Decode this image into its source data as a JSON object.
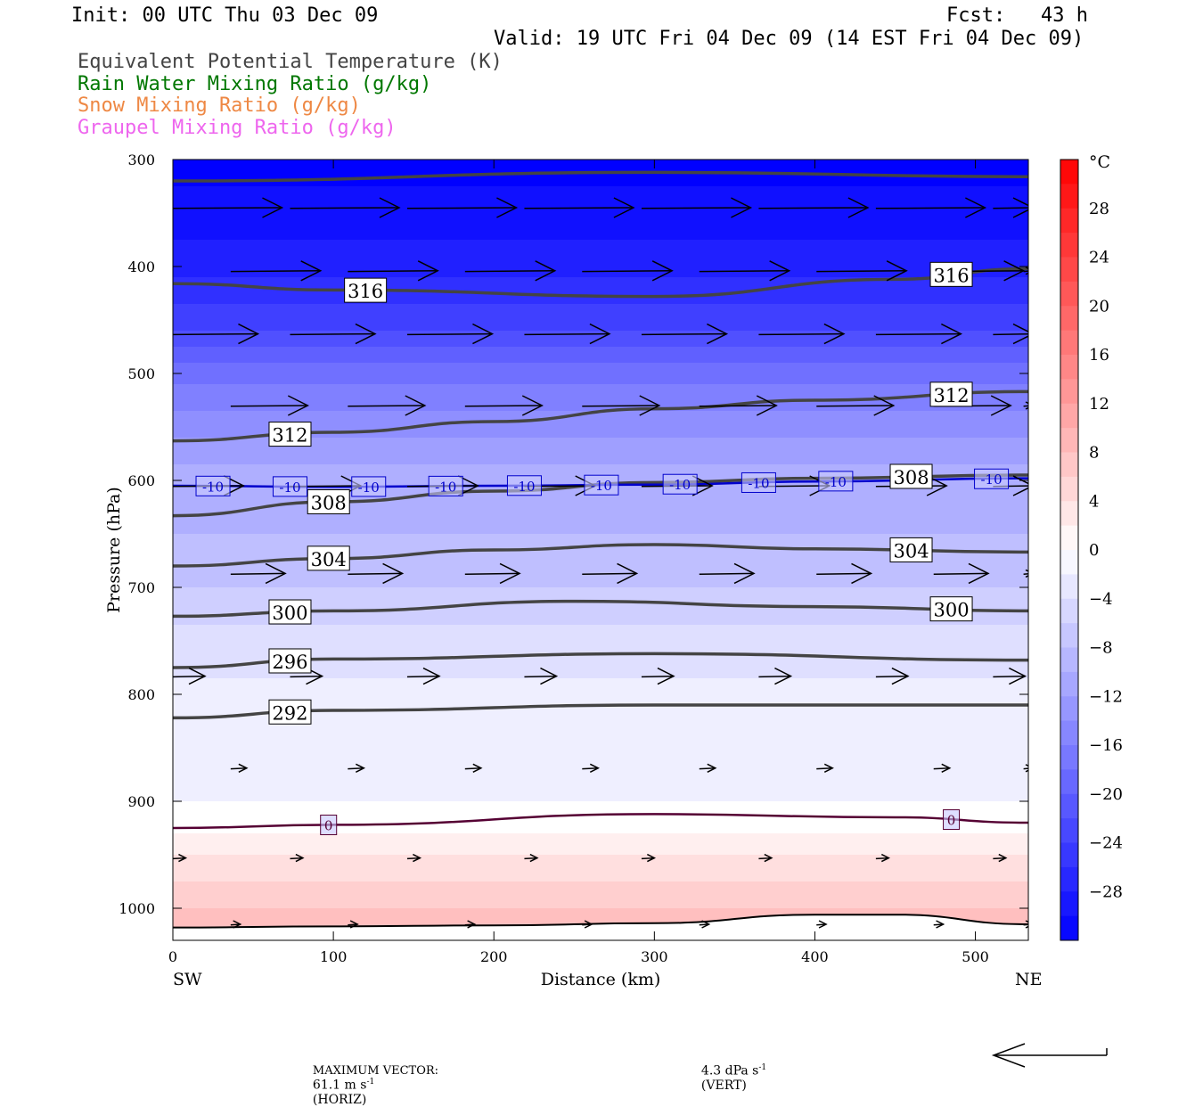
{
  "header": {
    "init": "Init: 00 UTC Thu 03 Dec 09",
    "fcst": "Fcst:   43 h",
    "valid": "Valid: 19 UTC Fri 04 Dec 09 (14 EST Fri 04 Dec 09)"
  },
  "legend": [
    {
      "label": "Equivalent Potential Temperature (K)",
      "color": "#444444"
    },
    {
      "label": "Rain Water Mixing Ratio (g/kg)",
      "color": "#007700"
    },
    {
      "label": "Snow Mixing Ratio (g/kg)",
      "color": "#ee8844"
    },
    {
      "label": "Graupel Mixing Ratio (g/kg)",
      "color": "#ee66ee"
    }
  ],
  "footer": {
    "max_vector_label": "MAXIMUM VECTOR:",
    "horiz_value": "61.1 m s",
    "horiz_exp": "-1",
    "horiz_unit": "(HORIZ)",
    "vert_value": "4.3 dPa s",
    "vert_exp": "-1",
    "vert_unit": "(VERT)"
  },
  "chart_data": {
    "type": "contour",
    "xlabel": "Distance (km)",
    "ylabel": "Pressure (hPa)",
    "x_ticks": [
      0,
      100,
      200,
      300,
      400,
      500
    ],
    "y_ticks": [
      300,
      400,
      500,
      600,
      700,
      800,
      900,
      1000
    ],
    "xlim": [
      0,
      533
    ],
    "ylim": [
      1030,
      300
    ],
    "left_end_label": "SW",
    "right_end_label": "NE",
    "colorbar": {
      "unit": "°C",
      "labels": [
        28,
        24,
        20,
        16,
        12,
        8,
        4,
        0,
        -4,
        -8,
        -12,
        -16,
        -20,
        -24,
        -28
      ],
      "min": -32,
      "max": 32,
      "step": 2
    },
    "temperature_fill": [
      {
        "p": 300,
        "t": -32
      },
      {
        "p": 400,
        "t": -28
      },
      {
        "p": 450,
        "t": -24
      },
      {
        "p": 500,
        "t": -18
      },
      {
        "p": 550,
        "t": -14
      },
      {
        "p": 600,
        "t": -10
      },
      {
        "p": 650,
        "t": -9
      },
      {
        "p": 700,
        "t": -7
      },
      {
        "p": 750,
        "t": -4
      },
      {
        "p": 800,
        "t": -2.5
      },
      {
        "p": 850,
        "t": -2.5
      },
      {
        "p": 900,
        "t": -1
      },
      {
        "p": 920,
        "t": 0
      },
      {
        "p": 950,
        "t": 3
      },
      {
        "p": 1000,
        "t": 7
      },
      {
        "p": 1030,
        "t": 9
      }
    ],
    "theta_e_contours": [
      {
        "value": 316,
        "labels": [
          "316"
        ],
        "points": [
          [
            0,
            320
          ],
          [
            300,
            312
          ],
          [
            533,
            316
          ]
        ]
      },
      {
        "value": 316,
        "labels": [
          "316",
          "316"
        ],
        "points": [
          [
            0,
            416
          ],
          [
            100,
            422
          ],
          [
            300,
            428
          ],
          [
            450,
            412
          ],
          [
            533,
            402
          ]
        ]
      },
      {
        "value": 312,
        "labels": [
          "312",
          "312"
        ],
        "points": [
          [
            0,
            563
          ],
          [
            100,
            555
          ],
          [
            200,
            545
          ],
          [
            300,
            533
          ],
          [
            400,
            525
          ],
          [
            533,
            517
          ]
        ]
      },
      {
        "value": 308,
        "labels": [
          "308",
          "308"
        ],
        "points": [
          [
            0,
            633
          ],
          [
            100,
            620
          ],
          [
            200,
            610
          ],
          [
            300,
            602
          ],
          [
            400,
            598
          ],
          [
            533,
            595
          ]
        ]
      },
      {
        "value": 304,
        "labels": [
          "304",
          "304"
        ],
        "points": [
          [
            0,
            680
          ],
          [
            100,
            673
          ],
          [
            200,
            665
          ],
          [
            300,
            660
          ],
          [
            400,
            664
          ],
          [
            533,
            667
          ]
        ]
      },
      {
        "value": 300,
        "labels": [
          "300",
          "300"
        ],
        "points": [
          [
            0,
            727
          ],
          [
            100,
            722
          ],
          [
            250,
            713
          ],
          [
            400,
            718
          ],
          [
            533,
            722
          ]
        ]
      },
      {
        "value": 296,
        "labels": [
          "296"
        ],
        "points": [
          [
            0,
            775
          ],
          [
            100,
            767
          ],
          [
            300,
            762
          ],
          [
            533,
            768
          ]
        ]
      },
      {
        "value": 292,
        "labels": [
          "292"
        ],
        "points": [
          [
            0,
            822
          ],
          [
            100,
            815
          ],
          [
            300,
            810
          ],
          [
            533,
            810
          ]
        ]
      }
    ],
    "isotherm_contours": [
      {
        "value": -10,
        "label": "-10",
        "color": "#0000cc",
        "points": [
          [
            0,
            605
          ],
          [
            100,
            606
          ],
          [
            200,
            605
          ],
          [
            300,
            604
          ],
          [
            400,
            601
          ],
          [
            533,
            598
          ]
        ]
      },
      {
        "value": 0,
        "label": "0",
        "color": "#550033",
        "points": [
          [
            0,
            925
          ],
          [
            100,
            922
          ],
          [
            300,
            912
          ],
          [
            450,
            915
          ],
          [
            533,
            920
          ]
        ]
      }
    ],
    "terrain": {
      "points": [
        [
          0,
          1018
        ],
        [
          100,
          1017
        ],
        [
          200,
          1016
        ],
        [
          300,
          1014
        ],
        [
          400,
          1006
        ],
        [
          450,
          1006
        ],
        [
          533,
          1015
        ]
      ]
    },
    "wind_vectors": [
      {
        "p": 345,
        "length_km": 68
      },
      {
        "p": 404,
        "length_km": 56
      },
      {
        "p": 463,
        "length_km": 53
      },
      {
        "p": 530,
        "length_km": 48
      },
      {
        "p": 605,
        "length_km": 44
      },
      {
        "p": 687,
        "length_km": 34
      },
      {
        "p": 783,
        "length_km": 20
      },
      {
        "p": 869,
        "length_km": 10
      },
      {
        "p": 953,
        "length_km": 8
      },
      {
        "p": 1015,
        "length_km": 6
      }
    ]
  }
}
